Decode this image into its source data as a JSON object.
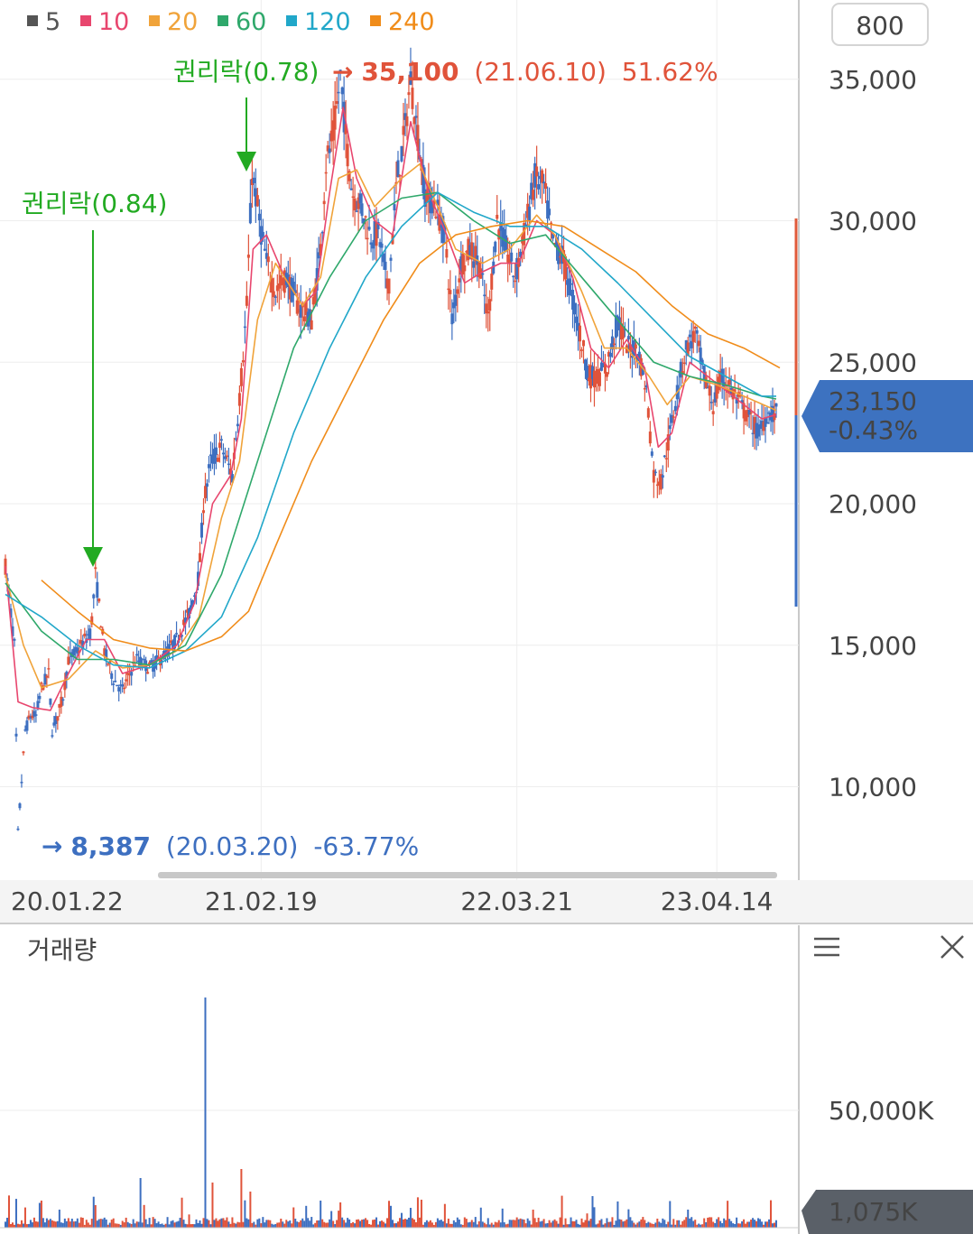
{
  "periods_button": "800",
  "legend": [
    {
      "label": "5",
      "color": "#555555"
    },
    {
      "label": "10",
      "color": "#e8466e"
    },
    {
      "label": "20",
      "color": "#f0a33a"
    },
    {
      "label": "60",
      "color": "#2fa86b"
    },
    {
      "label": "120",
      "color": "#21a7c9"
    },
    {
      "label": "240",
      "color": "#f08c1a"
    }
  ],
  "annotations": {
    "rights1": {
      "label": "권리락(0.84)",
      "date": "20.05.21",
      "price": 17500
    },
    "rights2": {
      "label": "권리락(0.78)",
      "date": "21.02.08",
      "price": 31700
    },
    "high": {
      "arrow": "→",
      "value": "35,100",
      "date": "(21.06.10)",
      "pct": "51.62%"
    },
    "low": {
      "arrow": "→",
      "value": "8,387",
      "date": "(20.03.20)",
      "pct": "-63.77%"
    }
  },
  "current": {
    "price": "23,150",
    "change": "-0.43%"
  },
  "volume_panel": {
    "title": "거래량",
    "tick": "50,000K",
    "current": "1,075K"
  },
  "chart_data": {
    "type": "candlestick",
    "y_ticks": [
      "35,000",
      "30,000",
      "25,000",
      "20,000",
      "15,000",
      "10,000"
    ],
    "x_ticks": [
      "20.01.22",
      "21.02.19",
      "22.03.21",
      "23.04.14"
    ],
    "ylim": [
      6700,
      37800
    ],
    "series": [
      {
        "name": "5",
        "points": [
          [
            0,
            17800
          ],
          [
            10,
            15000
          ],
          [
            14,
            8400
          ],
          [
            22,
            12000
          ],
          [
            28,
            12500
          ],
          [
            34,
            12500
          ],
          [
            40,
            13500
          ],
          [
            48,
            14000
          ],
          [
            52,
            12000
          ],
          [
            58,
            12500
          ],
          [
            64,
            13200
          ],
          [
            70,
            14500
          ],
          [
            80,
            14800
          ],
          [
            95,
            15500
          ],
          [
            100,
            17500
          ],
          [
            110,
            14800
          ],
          [
            120,
            13800
          ],
          [
            130,
            13400
          ],
          [
            145,
            14500
          ],
          [
            160,
            14200
          ],
          [
            175,
            14600
          ],
          [
            190,
            15200
          ],
          [
            205,
            16200
          ],
          [
            215,
            17500
          ],
          [
            220,
            20000
          ],
          [
            228,
            21500
          ],
          [
            240,
            22000
          ],
          [
            252,
            21000
          ],
          [
            262,
            24500
          ],
          [
            268,
            27000
          ],
          [
            274,
            31700
          ],
          [
            282,
            30000
          ],
          [
            290,
            28500
          ],
          [
            300,
            27500
          ],
          [
            312,
            28000
          ],
          [
            325,
            27000
          ],
          [
            340,
            26500
          ],
          [
            350,
            29000
          ],
          [
            356,
            32000
          ],
          [
            364,
            33000
          ],
          [
            372,
            35100
          ],
          [
            378,
            33000
          ],
          [
            385,
            31000
          ],
          [
            395,
            30500
          ],
          [
            405,
            29500
          ],
          [
            415,
            29500
          ],
          [
            425,
            27500
          ],
          [
            435,
            31500
          ],
          [
            443,
            33000
          ],
          [
            450,
            35000
          ],
          [
            458,
            33000
          ],
          [
            466,
            31000
          ],
          [
            478,
            30500
          ],
          [
            488,
            29500
          ],
          [
            496,
            26500
          ],
          [
            506,
            28500
          ],
          [
            516,
            29000
          ],
          [
            526,
            28500
          ],
          [
            536,
            26500
          ],
          [
            546,
            30000
          ],
          [
            556,
            29000
          ],
          [
            566,
            28000
          ],
          [
            576,
            29500
          ],
          [
            588,
            31500
          ],
          [
            598,
            31200
          ],
          [
            608,
            29200
          ],
          [
            618,
            28800
          ],
          [
            628,
            27500
          ],
          [
            638,
            26000
          ],
          [
            648,
            24500
          ],
          [
            658,
            24500
          ],
          [
            668,
            24800
          ],
          [
            680,
            26500
          ],
          [
            692,
            25500
          ],
          [
            702,
            25500
          ],
          [
            712,
            24000
          ],
          [
            720,
            21000
          ],
          [
            728,
            20800
          ],
          [
            738,
            22500
          ],
          [
            746,
            24000
          ],
          [
            756,
            25500
          ],
          [
            766,
            26000
          ],
          [
            776,
            24500
          ],
          [
            786,
            23500
          ],
          [
            796,
            24500
          ],
          [
            806,
            24000
          ],
          [
            816,
            23500
          ],
          [
            826,
            23000
          ],
          [
            836,
            22500
          ],
          [
            846,
            23200
          ],
          [
            856,
            23150
          ]
        ]
      },
      {
        "name": "10",
        "points": [
          [
            0,
            17800
          ],
          [
            14,
            13000
          ],
          [
            30,
            12800
          ],
          [
            50,
            12700
          ],
          [
            70,
            14000
          ],
          [
            90,
            15200
          ],
          [
            110,
            15200
          ],
          [
            130,
            14000
          ],
          [
            160,
            14300
          ],
          [
            190,
            15000
          ],
          [
            210,
            16500
          ],
          [
            230,
            20000
          ],
          [
            250,
            21000
          ],
          [
            262,
            23000
          ],
          [
            275,
            29000
          ],
          [
            290,
            29500
          ],
          [
            310,
            28000
          ],
          [
            330,
            27000
          ],
          [
            345,
            27500
          ],
          [
            360,
            31000
          ],
          [
            375,
            34000
          ],
          [
            390,
            31500
          ],
          [
            410,
            30000
          ],
          [
            430,
            29500
          ],
          [
            450,
            33500
          ],
          [
            470,
            31000
          ],
          [
            490,
            29500
          ],
          [
            510,
            27800
          ],
          [
            530,
            28200
          ],
          [
            550,
            28500
          ],
          [
            570,
            28500
          ],
          [
            590,
            30000
          ],
          [
            610,
            29500
          ],
          [
            630,
            28000
          ],
          [
            650,
            25500
          ],
          [
            670,
            24800
          ],
          [
            690,
            25800
          ],
          [
            710,
            24800
          ],
          [
            725,
            22000
          ],
          [
            740,
            22500
          ],
          [
            760,
            25000
          ],
          [
            780,
            24500
          ],
          [
            800,
            24000
          ],
          [
            820,
            23500
          ],
          [
            840,
            23000
          ],
          [
            856,
            23150
          ]
        ]
      },
      {
        "name": "20",
        "points": [
          [
            0,
            17500
          ],
          [
            20,
            15000
          ],
          [
            40,
            13500
          ],
          [
            70,
            13800
          ],
          [
            100,
            14800
          ],
          [
            130,
            14200
          ],
          [
            160,
            14300
          ],
          [
            190,
            14800
          ],
          [
            215,
            16000
          ],
          [
            240,
            19500
          ],
          [
            260,
            21500
          ],
          [
            280,
            26500
          ],
          [
            300,
            28500
          ],
          [
            330,
            27000
          ],
          [
            350,
            28000
          ],
          [
            370,
            31500
          ],
          [
            390,
            31800
          ],
          [
            410,
            30500
          ],
          [
            440,
            31500
          ],
          [
            460,
            32000
          ],
          [
            480,
            30500
          ],
          [
            500,
            29000
          ],
          [
            530,
            28500
          ],
          [
            560,
            29000
          ],
          [
            590,
            30200
          ],
          [
            610,
            29500
          ],
          [
            640,
            27500
          ],
          [
            665,
            25500
          ],
          [
            690,
            25500
          ],
          [
            715,
            24500
          ],
          [
            735,
            23500
          ],
          [
            760,
            24500
          ],
          [
            790,
            24200
          ],
          [
            820,
            23800
          ],
          [
            856,
            23300
          ]
        ]
      },
      {
        "name": "60",
        "points": [
          [
            0,
            17200
          ],
          [
            40,
            15500
          ],
          [
            80,
            14500
          ],
          [
            120,
            14500
          ],
          [
            160,
            14300
          ],
          [
            200,
            15000
          ],
          [
            240,
            17500
          ],
          [
            280,
            21500
          ],
          [
            320,
            25500
          ],
          [
            360,
            28000
          ],
          [
            400,
            30000
          ],
          [
            440,
            30800
          ],
          [
            480,
            31000
          ],
          [
            520,
            30000
          ],
          [
            560,
            29200
          ],
          [
            600,
            29500
          ],
          [
            640,
            28000
          ],
          [
            680,
            26500
          ],
          [
            720,
            25000
          ],
          [
            760,
            24500
          ],
          [
            800,
            24200
          ],
          [
            840,
            23800
          ],
          [
            856,
            23700
          ]
        ]
      },
      {
        "name": "120",
        "points": [
          [
            0,
            16800
          ],
          [
            40,
            16000
          ],
          [
            80,
            15000
          ],
          [
            120,
            14300
          ],
          [
            160,
            14200
          ],
          [
            200,
            14800
          ],
          [
            240,
            16000
          ],
          [
            280,
            18800
          ],
          [
            320,
            22500
          ],
          [
            360,
            25500
          ],
          [
            400,
            28000
          ],
          [
            440,
            29800
          ],
          [
            480,
            31000
          ],
          [
            520,
            30300
          ],
          [
            560,
            29800
          ],
          [
            600,
            29800
          ],
          [
            640,
            29000
          ],
          [
            680,
            27800
          ],
          [
            720,
            26500
          ],
          [
            760,
            25200
          ],
          [
            800,
            24500
          ],
          [
            840,
            23800
          ],
          [
            856,
            23800
          ]
        ]
      },
      {
        "name": "240",
        "points": [
          [
            40,
            17300
          ],
          [
            80,
            16200
          ],
          [
            120,
            15200
          ],
          [
            160,
            14900
          ],
          [
            200,
            14800
          ],
          [
            240,
            15300
          ],
          [
            270,
            16200
          ],
          [
            300,
            18500
          ],
          [
            340,
            21500
          ],
          [
            380,
            24000
          ],
          [
            420,
            26500
          ],
          [
            460,
            28500
          ],
          [
            500,
            29500
          ],
          [
            540,
            29800
          ],
          [
            580,
            30000
          ],
          [
            620,
            29800
          ],
          [
            660,
            29000
          ],
          [
            700,
            28200
          ],
          [
            740,
            27000
          ],
          [
            780,
            26000
          ],
          [
            820,
            25500
          ],
          [
            860,
            24800
          ]
        ]
      }
    ]
  }
}
